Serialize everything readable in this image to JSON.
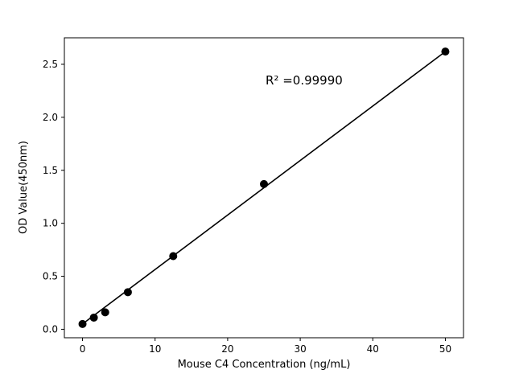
{
  "chart_data": {
    "type": "scatter",
    "title": "",
    "xlabel": "Mouse C4 Concentration (ng/mL)",
    "ylabel": "OD Value(450nm)",
    "annotation": "R² =0.99990",
    "x": [
      0,
      1.56,
      3.125,
      6.25,
      12.5,
      25,
      50
    ],
    "y": [
      0.05,
      0.11,
      0.16,
      0.35,
      0.69,
      1.37,
      2.62
    ],
    "fit_line": {
      "x1": 0,
      "y1": 0.05,
      "x2": 50,
      "y2": 2.62
    },
    "xlim": [
      -2.5,
      52.5
    ],
    "ylim": [
      -0.08,
      2.75
    ],
    "xticks": [
      0,
      10,
      20,
      30,
      40,
      50
    ],
    "xtick_labels": [
      "0",
      "10",
      "20",
      "30",
      "40",
      "50"
    ],
    "yticks": [
      0,
      0.5,
      1.0,
      1.5,
      2.0,
      2.5
    ],
    "ytick_labels": [
      "0.0",
      "0.5",
      "1.0",
      "1.5",
      "2.0",
      "2.5"
    ],
    "marker_color": "#000000",
    "line_color": "#000000",
    "frame_color": "#000000",
    "grid": false,
    "legend": "none"
  }
}
